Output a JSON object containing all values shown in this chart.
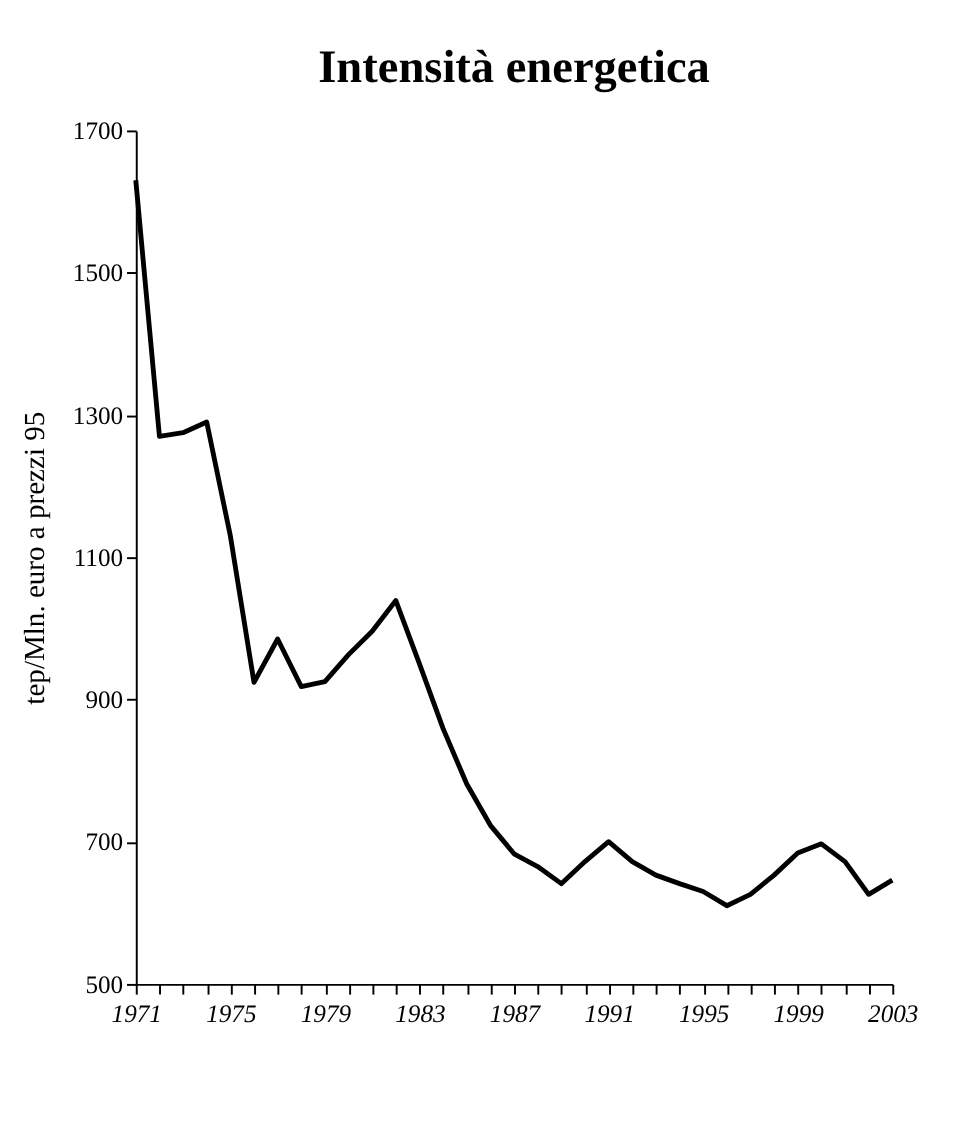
{
  "chart_data": {
    "type": "line",
    "title": "Intensità energetica",
    "ylabel": "tep/Mln. euro a prezzi 95",
    "x": [
      1971,
      1972,
      1973,
      1974,
      1975,
      1976,
      1977,
      1978,
      1979,
      1980,
      1981,
      1982,
      1983,
      1984,
      1985,
      1986,
      1987,
      1988,
      1989,
      1990,
      1991,
      1992,
      1993,
      1994,
      1995,
      1996,
      1997,
      1998,
      1999,
      2000,
      2001,
      2002,
      2003
    ],
    "series": [
      {
        "color": "#000000",
        "values": [
          1630,
          1270,
          1275,
          1290,
          1130,
          924,
          985,
          918,
          925,
          963,
          996,
          1039,
          950,
          859,
          781,
          723,
          683,
          665,
          641,
          672,
          700,
          672,
          653,
          641,
          630,
          610,
          626,
          653,
          684,
          697,
          672,
          626,
          646
        ]
      }
    ],
    "xlim": [
      1971,
      2003
    ],
    "xticks": [
      1971,
      {
        "value": 1972,
        "label": null
      },
      {
        "value": 1973,
        "label": null
      },
      {
        "value": 1974,
        "label": null
      },
      1975,
      {
        "value": 1976,
        "label": null
      },
      {
        "value": 1977,
        "label": null
      },
      {
        "value": 1978,
        "label": null
      },
      1979,
      {
        "value": 1980,
        "label": null
      },
      {
        "value": 1981,
        "label": null
      },
      {
        "value": 1982,
        "label": null
      },
      1983,
      {
        "value": 1984,
        "label": null
      },
      {
        "value": 1985,
        "label": null
      },
      {
        "value": 1986,
        "label": null
      },
      1987,
      {
        "value": 1988,
        "label": null
      },
      {
        "value": 1989,
        "label": null
      },
      {
        "value": 1990,
        "label": null
      },
      1991,
      {
        "value": 1992,
        "label": null
      },
      {
        "value": 1993,
        "label": null
      },
      {
        "value": 1994,
        "label": null
      },
      1995,
      {
        "value": 1996,
        "label": null
      },
      {
        "value": 1997,
        "label": null
      },
      {
        "value": 1998,
        "label": null
      },
      1999,
      {
        "value": 2000,
        "label": null
      },
      {
        "value": 2001,
        "label": null
      },
      {
        "value": 2002,
        "label": null
      },
      2003
    ],
    "ylim": [
      500,
      1700
    ],
    "yticks": [
      500,
      700,
      900,
      1100,
      1300,
      1500,
      1700
    ],
    "grid": false,
    "marker": "none",
    "line_style": "solid"
  }
}
